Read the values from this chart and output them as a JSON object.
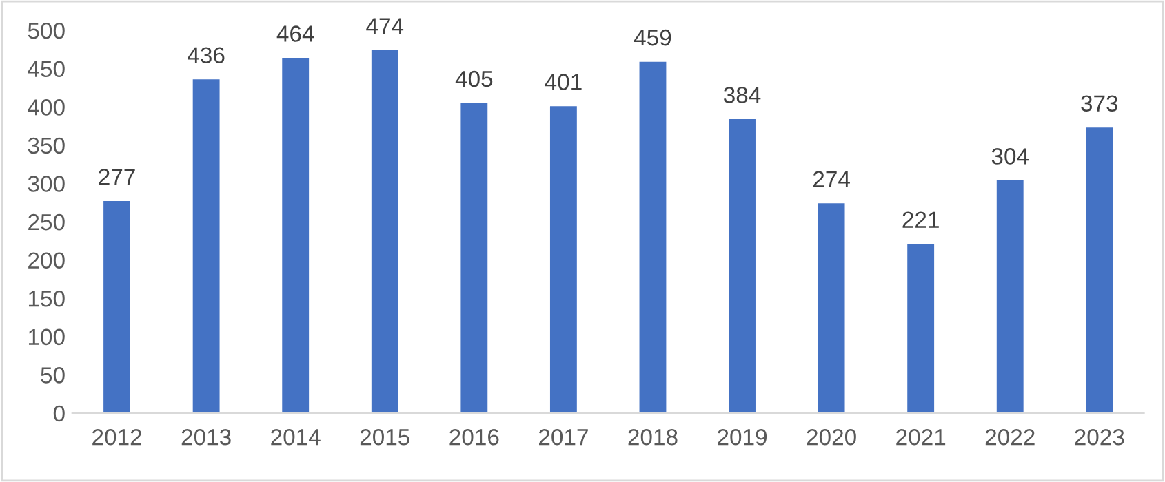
{
  "chart_data": {
    "type": "bar",
    "categories": [
      "2012",
      "2013",
      "2014",
      "2015",
      "2016",
      "2017",
      "2018",
      "2019",
      "2020",
      "2021",
      "2022",
      "2023"
    ],
    "values": [
      277,
      436,
      464,
      474,
      405,
      401,
      459,
      384,
      274,
      221,
      304,
      373
    ],
    "color": "#4472c4",
    "ylim": [
      0,
      500
    ],
    "yticks": [
      0,
      50,
      100,
      150,
      200,
      250,
      300,
      350,
      400,
      450,
      500
    ],
    "grid": false,
    "data_labels": true
  }
}
